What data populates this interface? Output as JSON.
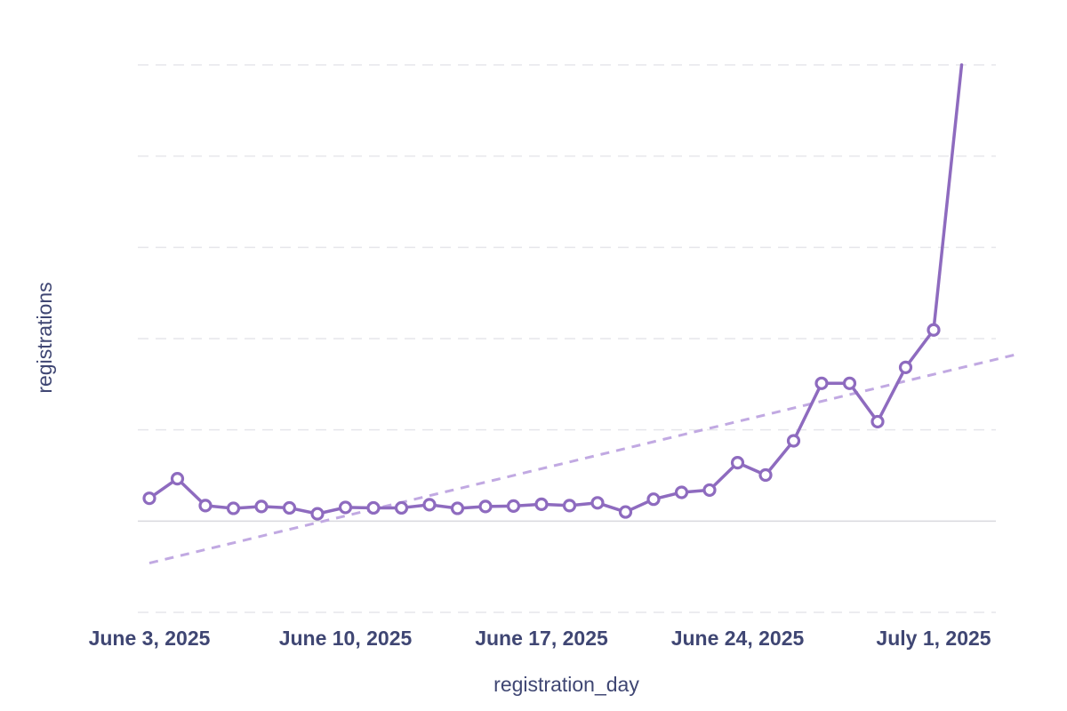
{
  "colors": {
    "series": "#8e6bbf",
    "trend": "#c1a9e2",
    "grid": "#e6e6eb",
    "baseline": "#d9d9de",
    "text": "#3f4673"
  },
  "chart_data": {
    "type": "line",
    "title": "",
    "xlabel": "registration_day",
    "ylabel": "registrations",
    "x_tick_labels": [
      "June 3, 2025",
      "June 10, 2025",
      "June 17, 2025",
      "June 24, 2025",
      "July 1, 2025"
    ],
    "x_tick_dates": [
      "2025-06-03",
      "2025-06-10",
      "2025-06-17",
      "2025-06-24",
      "2025-07-01"
    ],
    "ylim": [
      -20,
      100
    ],
    "y_gridlines": [
      -20,
      0,
      20,
      40,
      60,
      80,
      100
    ],
    "grid": true,
    "legend": "none",
    "x": [
      "2025-06-03",
      "2025-06-04",
      "2025-06-05",
      "2025-06-06",
      "2025-06-07",
      "2025-06-08",
      "2025-06-09",
      "2025-06-10",
      "2025-06-11",
      "2025-06-12",
      "2025-06-13",
      "2025-06-14",
      "2025-06-15",
      "2025-06-16",
      "2025-06-17",
      "2025-06-18",
      "2025-06-19",
      "2025-06-20",
      "2025-06-21",
      "2025-06-22",
      "2025-06-23",
      "2025-06-24",
      "2025-06-25",
      "2025-06-26",
      "2025-06-27",
      "2025-06-28",
      "2025-06-29",
      "2025-06-30",
      "2025-07-01",
      "2025-07-02"
    ],
    "series": [
      {
        "values": [
          5,
          9.3,
          3.4,
          2.8,
          3.2,
          2.9,
          1.6,
          3,
          2.9,
          2.9,
          3.6,
          2.8,
          3.2,
          3.3,
          3.7,
          3.4,
          4,
          2,
          4.8,
          6.3,
          6.8,
          12.8,
          10.1,
          17.6,
          30.2,
          30.2,
          21.8,
          33.7,
          41.9,
          100
        ]
      }
    ],
    "trendline": {
      "start": [
        "2025-06-03",
        -9.2
      ],
      "end": [
        "2025-07-04",
        36.6
      ]
    }
  }
}
